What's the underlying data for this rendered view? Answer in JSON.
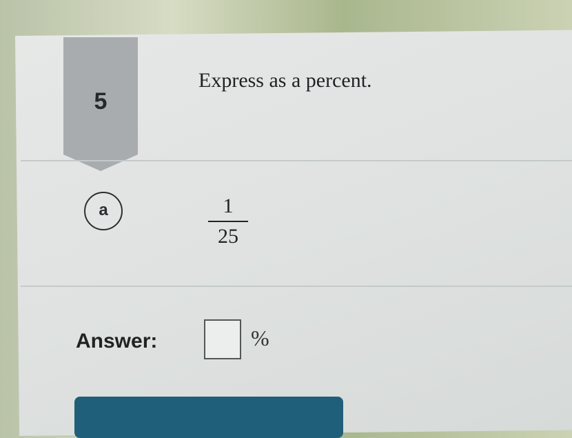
{
  "question": {
    "number": "5",
    "prompt": "Express as a percent."
  },
  "part": {
    "label": "a",
    "fraction": {
      "numerator": "1",
      "denominator": "25"
    }
  },
  "answer": {
    "label": "Answer:",
    "value": "",
    "unit": "%"
  },
  "colors": {
    "badge": "#a8acae",
    "button": "#1f5f79",
    "card": "#e2e5e4"
  }
}
